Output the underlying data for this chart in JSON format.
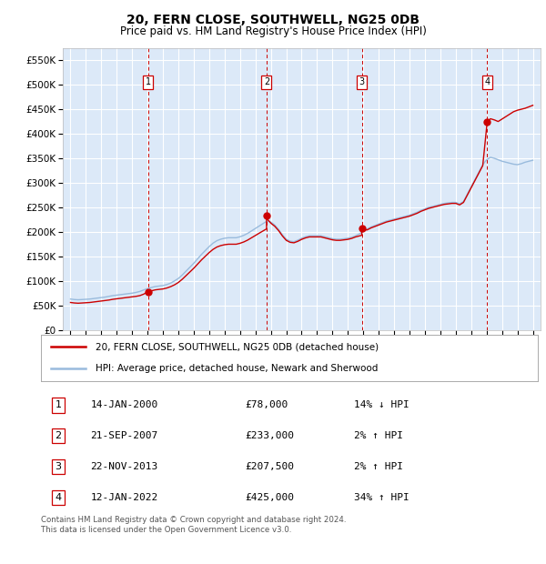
{
  "title": "20, FERN CLOSE, SOUTHWELL, NG25 0DB",
  "subtitle": "Price paid vs. HM Land Registry's House Price Index (HPI)",
  "xlim": [
    1994.5,
    2025.5
  ],
  "ylim": [
    0,
    575000
  ],
  "yticks": [
    0,
    50000,
    100000,
    150000,
    200000,
    250000,
    300000,
    350000,
    400000,
    450000,
    500000,
    550000
  ],
  "ytick_labels": [
    "£0",
    "£50K",
    "£100K",
    "£150K",
    "£200K",
    "£250K",
    "£300K",
    "£350K",
    "£400K",
    "£450K",
    "£500K",
    "£550K"
  ],
  "plot_bg_color": "#dce9f8",
  "grid_color": "#ffffff",
  "sale_color": "#cc0000",
  "hpi_color": "#99bbdd",
  "vline_color": "#cc0000",
  "purchases": [
    {
      "year": 2000.04,
      "price": 78000,
      "label": "1"
    },
    {
      "year": 2007.72,
      "price": 233000,
      "label": "2"
    },
    {
      "year": 2013.9,
      "price": 207500,
      "label": "3"
    },
    {
      "year": 2022.04,
      "price": 425000,
      "label": "4"
    }
  ],
  "table_rows": [
    {
      "num": "1",
      "date": "14-JAN-2000",
      "price": "£78,000",
      "change": "14% ↓ HPI"
    },
    {
      "num": "2",
      "date": "21-SEP-2007",
      "price": "£233,000",
      "change": "2% ↑ HPI"
    },
    {
      "num": "3",
      "date": "22-NOV-2013",
      "price": "£207,500",
      "change": "2% ↑ HPI"
    },
    {
      "num": "4",
      "date": "12-JAN-2022",
      "price": "£425,000",
      "change": "34% ↑ HPI"
    }
  ],
  "legend_sale": "20, FERN CLOSE, SOUTHWELL, NG25 0DB (detached house)",
  "legend_hpi": "HPI: Average price, detached house, Newark and Sherwood",
  "footnote": "Contains HM Land Registry data © Crown copyright and database right 2024.\nThis data is licensed under the Open Government Licence v3.0.",
  "hpi_data_years": [
    1995.0,
    1995.25,
    1995.5,
    1995.75,
    1996.0,
    1996.25,
    1996.5,
    1996.75,
    1997.0,
    1997.25,
    1997.5,
    1997.75,
    1998.0,
    1998.25,
    1998.5,
    1998.75,
    1999.0,
    1999.25,
    1999.5,
    1999.75,
    2000.0,
    2000.25,
    2000.5,
    2000.75,
    2001.0,
    2001.25,
    2001.5,
    2001.75,
    2002.0,
    2002.25,
    2002.5,
    2002.75,
    2003.0,
    2003.25,
    2003.5,
    2003.75,
    2004.0,
    2004.25,
    2004.5,
    2004.75,
    2005.0,
    2005.25,
    2005.5,
    2005.75,
    2006.0,
    2006.25,
    2006.5,
    2006.75,
    2007.0,
    2007.25,
    2007.5,
    2007.75,
    2008.0,
    2008.25,
    2008.5,
    2008.75,
    2009.0,
    2009.25,
    2009.5,
    2009.75,
    2010.0,
    2010.25,
    2010.5,
    2010.75,
    2011.0,
    2011.25,
    2011.5,
    2011.75,
    2012.0,
    2012.25,
    2012.5,
    2012.75,
    2013.0,
    2013.25,
    2013.5,
    2013.75,
    2014.0,
    2014.25,
    2014.5,
    2014.75,
    2015.0,
    2015.25,
    2015.5,
    2015.75,
    2016.0,
    2016.25,
    2016.5,
    2016.75,
    2017.0,
    2017.25,
    2017.5,
    2017.75,
    2018.0,
    2018.25,
    2018.5,
    2018.75,
    2019.0,
    2019.25,
    2019.5,
    2019.75,
    2020.0,
    2020.25,
    2020.5,
    2020.75,
    2021.0,
    2021.25,
    2021.5,
    2021.75,
    2022.0,
    2022.25,
    2022.5,
    2022.75,
    2023.0,
    2023.25,
    2023.5,
    2023.75,
    2024.0,
    2024.25,
    2024.5,
    2024.75,
    2025.0
  ],
  "hpi_data_values": [
    63000,
    62000,
    61500,
    62000,
    62500,
    63000,
    64000,
    65000,
    66000,
    67000,
    68500,
    70000,
    71000,
    72000,
    73000,
    74000,
    75000,
    76500,
    78500,
    81500,
    84500,
    86500,
    88500,
    89500,
    90500,
    92500,
    95500,
    100000,
    105000,
    112000,
    120000,
    128000,
    136000,
    145000,
    154000,
    162000,
    170000,
    177000,
    182000,
    185000,
    187000,
    188000,
    188000,
    188000,
    190000,
    193000,
    197000,
    202000,
    207000,
    212000,
    217000,
    222000,
    220000,
    214000,
    205000,
    194000,
    185000,
    181000,
    180000,
    183000,
    187000,
    190000,
    192000,
    192000,
    192000,
    192000,
    190000,
    188000,
    186000,
    185000,
    185000,
    186000,
    187000,
    189000,
    192000,
    196000,
    201000,
    206000,
    210000,
    213000,
    216000,
    219000,
    222000,
    224000,
    226000,
    228000,
    230000,
    232000,
    234000,
    237000,
    240000,
    244000,
    247000,
    250000,
    252000,
    254000,
    256000,
    258000,
    259000,
    260000,
    260000,
    257000,
    262000,
    277000,
    292000,
    307000,
    322000,
    337000,
    347000,
    352000,
    350000,
    347000,
    344000,
    342000,
    340000,
    338000,
    337000,
    339000,
    342000,
    344000,
    346000
  ],
  "red_line_years": [
    1995.0,
    1995.25,
    1995.5,
    1995.75,
    1996.0,
    1996.25,
    1996.5,
    1996.75,
    1997.0,
    1997.25,
    1997.5,
    1997.75,
    1998.0,
    1998.25,
    1998.5,
    1998.75,
    1999.0,
    1999.25,
    1999.5,
    1999.75,
    2000.04,
    2000.25,
    2000.5,
    2000.75,
    2001.0,
    2001.25,
    2001.5,
    2001.75,
    2002.0,
    2002.25,
    2002.5,
    2002.75,
    2003.0,
    2003.25,
    2003.5,
    2003.75,
    2004.0,
    2004.25,
    2004.5,
    2004.75,
    2005.0,
    2005.25,
    2005.5,
    2005.75,
    2006.0,
    2006.25,
    2006.5,
    2006.75,
    2007.0,
    2007.25,
    2007.5,
    2007.72,
    2007.72,
    2007.75,
    2008.0,
    2008.25,
    2008.5,
    2008.75,
    2009.0,
    2009.25,
    2009.5,
    2009.75,
    2010.0,
    2010.25,
    2010.5,
    2010.75,
    2011.0,
    2011.25,
    2011.5,
    2011.75,
    2012.0,
    2012.25,
    2012.5,
    2012.75,
    2013.0,
    2013.25,
    2013.5,
    2013.9,
    2013.9,
    2014.0,
    2014.25,
    2014.5,
    2014.75,
    2015.0,
    2015.25,
    2015.5,
    2015.75,
    2016.0,
    2016.25,
    2016.5,
    2016.75,
    2017.0,
    2017.25,
    2017.5,
    2017.75,
    2018.0,
    2018.25,
    2018.5,
    2018.75,
    2019.0,
    2019.25,
    2019.5,
    2019.75,
    2020.0,
    2020.25,
    2020.5,
    2020.75,
    2021.0,
    2021.25,
    2021.5,
    2021.75,
    2022.04,
    2022.04,
    2022.25,
    2022.5,
    2022.75,
    2023.0,
    2023.25,
    2023.5,
    2023.75,
    2024.0,
    2024.25,
    2024.5,
    2024.75,
    2025.0
  ],
  "red_line_values": [
    56000,
    55000,
    54500,
    55000,
    55500,
    56000,
    57000,
    58000,
    59000,
    60000,
    61000,
    62500,
    63500,
    64500,
    65500,
    66500,
    67500,
    68500,
    70000,
    73000,
    78000,
    79800,
    81700,
    82700,
    83600,
    85500,
    88300,
    92000,
    96800,
    103300,
    110800,
    118300,
    125800,
    134300,
    142800,
    150300,
    157800,
    164300,
    169100,
    172000,
    173800,
    174800,
    174800,
    174800,
    176700,
    179500,
    183300,
    188000,
    192700,
    197400,
    202000,
    206000,
    233000,
    226700,
    217700,
    211500,
    202700,
    191700,
    182700,
    178700,
    177700,
    180700,
    184700,
    187700,
    189700,
    189700,
    189700,
    189700,
    187700,
    185700,
    183700,
    182700,
    182700,
    183700,
    184700,
    186700,
    189700,
    193000,
    207500,
    204000,
    204000,
    208000,
    211000,
    214000,
    217000,
    220000,
    222000,
    224000,
    226000,
    228000,
    230000,
    232000,
    235000,
    238000,
    242000,
    245000,
    248000,
    250000,
    252000,
    254000,
    256000,
    257000,
    258000,
    258000,
    255000,
    260000,
    275000,
    290000,
    305000,
    320000,
    335000,
    425000,
    425000,
    430600,
    428300,
    425000,
    430000,
    435000,
    440000,
    445000,
    448000,
    450000,
    452000,
    455000,
    458000
  ]
}
